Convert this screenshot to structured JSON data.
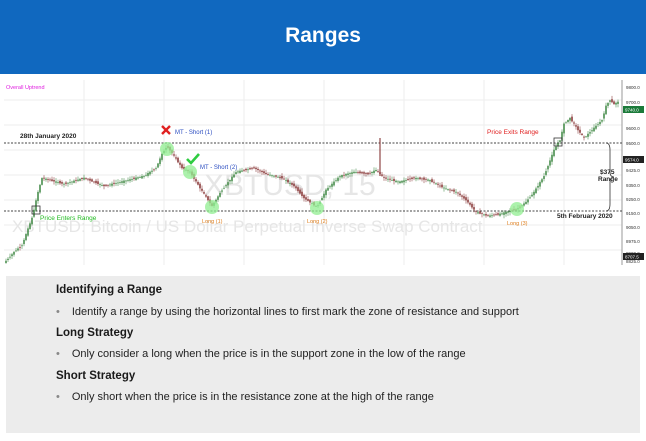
{
  "slide": {
    "title": "Ranges"
  },
  "chart": {
    "overall_label": "Overall Uptrend",
    "date_top": "28th January 2020",
    "date_bottom": "5th February 2020",
    "mt_short_1": "MT - Short (1)",
    "mt_short_2": "MT - Short (2)",
    "long_1": "Long (1)",
    "long_2": "Long (2)",
    "long_3": "Long (3)",
    "price_enters": "Price Enters Range",
    "price_exits": "Price Exits Range",
    "range_amount": "$375",
    "range_word": "Range",
    "watermark_1": "XBTUSD, 15",
    "watermark_2": "XBTUSD: Bitcoin / US Dollar Perpetual Inverse Swap Contract",
    "axis_labels": [
      "9800.0",
      "9700.0",
      "9600.0",
      "9500.0",
      "9425.0",
      "9350.0",
      "9250.0",
      "9150.0",
      "9050.0",
      "8975.0",
      "8900.0",
      "8825.0"
    ],
    "price_tag_high": "9740.0",
    "price_tag_mid": "9574.0",
    "price_tag_low": "8707.5",
    "colors": {
      "up": "#2e7d32",
      "down": "#7a2020",
      "level": "#333333",
      "highlight": "#90ee90"
    }
  },
  "notes": {
    "h1": "Identifying a Range",
    "b1": "Identify a range by using the horizontal lines to first mark the zone of resistance and support",
    "h2": "Long Strategy",
    "b2": "Only consider a long when the price is in the support zone in the low of the range",
    "h3": "Short Strategy",
    "b3": "Only short when the price is in the resistance zone at the high of the range"
  }
}
